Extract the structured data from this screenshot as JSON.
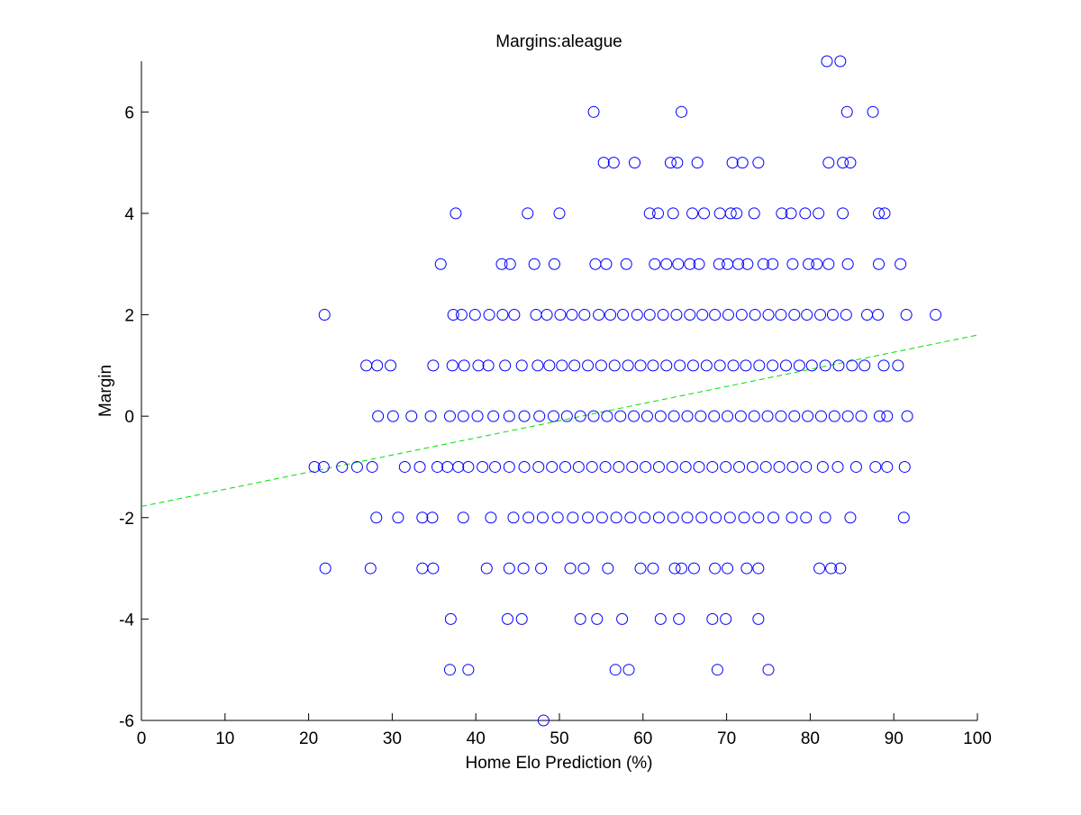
{
  "chart_data": {
    "type": "scatter",
    "title": "Margins:aleague",
    "xlabel": "Home Elo Prediction (%)",
    "ylabel": "Margin",
    "xlim": [
      0,
      100
    ],
    "ylim": [
      -6,
      7
    ],
    "xticks": [
      0,
      10,
      20,
      30,
      40,
      50,
      60,
      70,
      80,
      90,
      100
    ],
    "yticks": [
      -6,
      -4,
      -2,
      0,
      2,
      4,
      6
    ],
    "grid": false,
    "colors": {
      "points": "#0000ff",
      "trend": "#00e000",
      "axes": "#000000"
    },
    "series": [
      {
        "marker": "open-circle",
        "points": [
          [
            82,
            7
          ],
          [
            83.6,
            7
          ],
          [
            54.1,
            6
          ],
          [
            64.6,
            6
          ],
          [
            84.4,
            6
          ],
          [
            87.5,
            6
          ],
          [
            55.3,
            5
          ],
          [
            56.5,
            5
          ],
          [
            59,
            5
          ],
          [
            63.3,
            5
          ],
          [
            64.1,
            5
          ],
          [
            66.5,
            5
          ],
          [
            70.7,
            5
          ],
          [
            71.9,
            5
          ],
          [
            73.8,
            5
          ],
          [
            82.2,
            5
          ],
          [
            83.9,
            5
          ],
          [
            84.8,
            5
          ],
          [
            37.6,
            4
          ],
          [
            46.2,
            4
          ],
          [
            50,
            4
          ],
          [
            60.8,
            4
          ],
          [
            61.8,
            4
          ],
          [
            63.6,
            4
          ],
          [
            65.9,
            4
          ],
          [
            67.3,
            4
          ],
          [
            69.2,
            4
          ],
          [
            70.5,
            4
          ],
          [
            71.2,
            4
          ],
          [
            73.3,
            4
          ],
          [
            76.6,
            4
          ],
          [
            77.7,
            4
          ],
          [
            79.4,
            4
          ],
          [
            81,
            4
          ],
          [
            83.9,
            4
          ],
          [
            88.2,
            4
          ],
          [
            88.9,
            4
          ],
          [
            35.8,
            3
          ],
          [
            43.1,
            3
          ],
          [
            44.1,
            3
          ],
          [
            47,
            3
          ],
          [
            49.4,
            3
          ],
          [
            54.3,
            3
          ],
          [
            55.6,
            3
          ],
          [
            58,
            3
          ],
          [
            61.4,
            3
          ],
          [
            62.8,
            3
          ],
          [
            64.2,
            3
          ],
          [
            65.6,
            3
          ],
          [
            66.7,
            3
          ],
          [
            69.1,
            3
          ],
          [
            70.1,
            3
          ],
          [
            71.4,
            3
          ],
          [
            72.5,
            3
          ],
          [
            74.4,
            3
          ],
          [
            75.5,
            3
          ],
          [
            77.9,
            3
          ],
          [
            79.8,
            3
          ],
          [
            80.8,
            3
          ],
          [
            82.2,
            3
          ],
          [
            84.5,
            3
          ],
          [
            88.2,
            3
          ],
          [
            90.8,
            3
          ],
          [
            21.9,
            2
          ],
          [
            37.3,
            2
          ],
          [
            38.3,
            2
          ],
          [
            39.9,
            2
          ],
          [
            41.6,
            2
          ],
          [
            43.2,
            2
          ],
          [
            44.6,
            2
          ],
          [
            47.2,
            2
          ],
          [
            48.5,
            2
          ],
          [
            50.1,
            2
          ],
          [
            51.5,
            2
          ],
          [
            53,
            2
          ],
          [
            54.7,
            2
          ],
          [
            56.1,
            2
          ],
          [
            57.6,
            2
          ],
          [
            59.3,
            2
          ],
          [
            60.8,
            2
          ],
          [
            62.4,
            2
          ],
          [
            64,
            2
          ],
          [
            65.6,
            2
          ],
          [
            67.1,
            2
          ],
          [
            68.6,
            2
          ],
          [
            70.2,
            2
          ],
          [
            71.8,
            2
          ],
          [
            73.4,
            2
          ],
          [
            75,
            2
          ],
          [
            76.5,
            2
          ],
          [
            78.1,
            2
          ],
          [
            79.6,
            2
          ],
          [
            81.2,
            2
          ],
          [
            82.7,
            2
          ],
          [
            84.3,
            2
          ],
          [
            86.8,
            2
          ],
          [
            88.1,
            2
          ],
          [
            91.5,
            2
          ],
          [
            95,
            2
          ],
          [
            26.9,
            1
          ],
          [
            28.2,
            1
          ],
          [
            29.8,
            1
          ],
          [
            34.9,
            1
          ],
          [
            37.2,
            1
          ],
          [
            38.6,
            1
          ],
          [
            40.3,
            1
          ],
          [
            41.5,
            1
          ],
          [
            43.5,
            1
          ],
          [
            45.5,
            1
          ],
          [
            47.4,
            1
          ],
          [
            48.8,
            1
          ],
          [
            50.3,
            1
          ],
          [
            51.8,
            1
          ],
          [
            53.4,
            1
          ],
          [
            55,
            1
          ],
          [
            56.6,
            1
          ],
          [
            58.2,
            1
          ],
          [
            59.7,
            1
          ],
          [
            61.2,
            1
          ],
          [
            62.8,
            1
          ],
          [
            64.4,
            1
          ],
          [
            66,
            1
          ],
          [
            67.6,
            1
          ],
          [
            69.2,
            1
          ],
          [
            70.8,
            1
          ],
          [
            72.3,
            1
          ],
          [
            73.9,
            1
          ],
          [
            75.5,
            1
          ],
          [
            77.1,
            1
          ],
          [
            78.7,
            1
          ],
          [
            80.2,
            1
          ],
          [
            81.8,
            1
          ],
          [
            83.4,
            1
          ],
          [
            85,
            1
          ],
          [
            86.5,
            1
          ],
          [
            88.8,
            1
          ],
          [
            90.5,
            1
          ],
          [
            28.3,
            0
          ],
          [
            30.1,
            0
          ],
          [
            32.3,
            0
          ],
          [
            34.6,
            0
          ],
          [
            36.9,
            0
          ],
          [
            38.5,
            0
          ],
          [
            40.2,
            0
          ],
          [
            42.1,
            0
          ],
          [
            44,
            0
          ],
          [
            45.8,
            0
          ],
          [
            47.6,
            0
          ],
          [
            49.3,
            0
          ],
          [
            50.9,
            0
          ],
          [
            52.5,
            0
          ],
          [
            54.1,
            0
          ],
          [
            55.7,
            0
          ],
          [
            57.3,
            0
          ],
          [
            58.9,
            0
          ],
          [
            60.5,
            0
          ],
          [
            62.1,
            0
          ],
          [
            63.7,
            0
          ],
          [
            65.3,
            0
          ],
          [
            66.9,
            0
          ],
          [
            68.5,
            0
          ],
          [
            70.1,
            0
          ],
          [
            71.7,
            0
          ],
          [
            73.3,
            0
          ],
          [
            74.9,
            0
          ],
          [
            76.5,
            0
          ],
          [
            78.1,
            0
          ],
          [
            79.7,
            0
          ],
          [
            81.3,
            0
          ],
          [
            82.9,
            0
          ],
          [
            84.5,
            0
          ],
          [
            86.1,
            0
          ],
          [
            88.3,
            0
          ],
          [
            89.2,
            0
          ],
          [
            91.6,
            0
          ],
          [
            20.7,
            -1
          ],
          [
            21.8,
            -1
          ],
          [
            24,
            -1
          ],
          [
            25.8,
            -1
          ],
          [
            27.6,
            -1
          ],
          [
            31.5,
            -1
          ],
          [
            33.3,
            -1
          ],
          [
            35.4,
            -1
          ],
          [
            36.6,
            -1
          ],
          [
            37.9,
            -1
          ],
          [
            39.1,
            -1
          ],
          [
            40.8,
            -1
          ],
          [
            42.3,
            -1
          ],
          [
            44,
            -1
          ],
          [
            45.8,
            -1
          ],
          [
            47.5,
            -1
          ],
          [
            49.1,
            -1
          ],
          [
            50.7,
            -1
          ],
          [
            52.3,
            -1
          ],
          [
            53.9,
            -1
          ],
          [
            55.5,
            -1
          ],
          [
            57.1,
            -1
          ],
          [
            58.7,
            -1
          ],
          [
            60.3,
            -1
          ],
          [
            61.9,
            -1
          ],
          [
            63.5,
            -1
          ],
          [
            65.1,
            -1
          ],
          [
            66.7,
            -1
          ],
          [
            68.3,
            -1
          ],
          [
            69.9,
            -1
          ],
          [
            71.5,
            -1
          ],
          [
            73.1,
            -1
          ],
          [
            74.7,
            -1
          ],
          [
            76.3,
            -1
          ],
          [
            77.9,
            -1
          ],
          [
            79.5,
            -1
          ],
          [
            81.5,
            -1
          ],
          [
            83.3,
            -1
          ],
          [
            85.5,
            -1
          ],
          [
            87.8,
            -1
          ],
          [
            89.2,
            -1
          ],
          [
            91.3,
            -1
          ],
          [
            28.1,
            -2
          ],
          [
            30.7,
            -2
          ],
          [
            33.6,
            -2
          ],
          [
            34.8,
            -2
          ],
          [
            38.5,
            -2
          ],
          [
            41.8,
            -2
          ],
          [
            44.5,
            -2
          ],
          [
            46.3,
            -2
          ],
          [
            48,
            -2
          ],
          [
            49.8,
            -2
          ],
          [
            51.6,
            -2
          ],
          [
            53.4,
            -2
          ],
          [
            55.1,
            -2
          ],
          [
            56.8,
            -2
          ],
          [
            58.5,
            -2
          ],
          [
            60.2,
            -2
          ],
          [
            61.9,
            -2
          ],
          [
            63.6,
            -2
          ],
          [
            65.3,
            -2
          ],
          [
            67,
            -2
          ],
          [
            68.7,
            -2
          ],
          [
            70.4,
            -2
          ],
          [
            72.1,
            -2
          ],
          [
            73.8,
            -2
          ],
          [
            75.6,
            -2
          ],
          [
            77.8,
            -2
          ],
          [
            79.5,
            -2
          ],
          [
            81.8,
            -2
          ],
          [
            84.8,
            -2
          ],
          [
            91.2,
            -2
          ],
          [
            22,
            -3
          ],
          [
            27.4,
            -3
          ],
          [
            33.6,
            -3
          ],
          [
            34.9,
            -3
          ],
          [
            41.3,
            -3
          ],
          [
            44,
            -3
          ],
          [
            45.7,
            -3
          ],
          [
            47.8,
            -3
          ],
          [
            51.3,
            -3
          ],
          [
            52.9,
            -3
          ],
          [
            55.8,
            -3
          ],
          [
            59.7,
            -3
          ],
          [
            61.2,
            -3
          ],
          [
            63.8,
            -3
          ],
          [
            64.6,
            -3
          ],
          [
            66.1,
            -3
          ],
          [
            68.6,
            -3
          ],
          [
            70.1,
            -3
          ],
          [
            72.4,
            -3
          ],
          [
            73.8,
            -3
          ],
          [
            81.1,
            -3
          ],
          [
            82.5,
            -3
          ],
          [
            83.6,
            -3
          ],
          [
            37,
            -4
          ],
          [
            43.8,
            -4
          ],
          [
            45.5,
            -4
          ],
          [
            52.5,
            -4
          ],
          [
            54.5,
            -4
          ],
          [
            57.5,
            -4
          ],
          [
            62.1,
            -4
          ],
          [
            64.3,
            -4
          ],
          [
            68.3,
            -4
          ],
          [
            69.9,
            -4
          ],
          [
            73.8,
            -4
          ],
          [
            36.9,
            -5
          ],
          [
            39.1,
            -5
          ],
          [
            56.7,
            -5
          ],
          [
            58.3,
            -5
          ],
          [
            68.9,
            -5
          ],
          [
            75,
            -5
          ],
          [
            48.1,
            -6
          ]
        ]
      }
    ],
    "trendline": {
      "style": "dashed",
      "x": [
        0,
        100
      ],
      "y": [
        -1.78,
        1.6
      ]
    }
  }
}
